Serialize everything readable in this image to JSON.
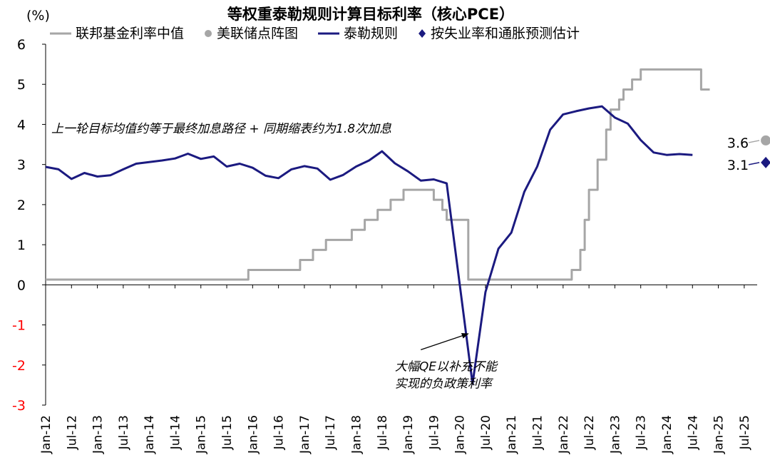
{
  "chart_data": {
    "type": "line",
    "title": "等权重泰勒规则计算目标利率（核心PCE）",
    "unit_label": "(%)",
    "y_range": [
      -3,
      6
    ],
    "y_ticks": [
      "6",
      "5",
      "4",
      "3",
      "2",
      "1",
      "0",
      "-1",
      "-2",
      "-3"
    ],
    "negative_tick_color": "#ff0000",
    "x_range": [
      "2012-01",
      "2025-10"
    ],
    "x_ticks": [
      {
        "date": "2012-01",
        "label": "Jan-12"
      },
      {
        "date": "2012-07",
        "label": "Jul-12"
      },
      {
        "date": "2013-01",
        "label": "Jan-13"
      },
      {
        "date": "2013-07",
        "label": "Jul-13"
      },
      {
        "date": "2014-01",
        "label": "Jan-14"
      },
      {
        "date": "2014-07",
        "label": "Jul-14"
      },
      {
        "date": "2015-01",
        "label": "Jan-15"
      },
      {
        "date": "2015-07",
        "label": "Jul-15"
      },
      {
        "date": "2016-01",
        "label": "Jan-16"
      },
      {
        "date": "2016-07",
        "label": "Jul-16"
      },
      {
        "date": "2017-01",
        "label": "Jan-17"
      },
      {
        "date": "2017-07",
        "label": "Jul-17"
      },
      {
        "date": "2018-01",
        "label": "Jan-18"
      },
      {
        "date": "2018-07",
        "label": "Jul-18"
      },
      {
        "date": "2019-01",
        "label": "Jan-19"
      },
      {
        "date": "2019-07",
        "label": "Jul-19"
      },
      {
        "date": "2020-01",
        "label": "Jan-20"
      },
      {
        "date": "2020-07",
        "label": "Jul-20"
      },
      {
        "date": "2021-01",
        "label": "Jan-21"
      },
      {
        "date": "2021-07",
        "label": "Jul-21"
      },
      {
        "date": "2022-01",
        "label": "Jan-22"
      },
      {
        "date": "2022-07",
        "label": "Jul-22"
      },
      {
        "date": "2023-01",
        "label": "Jan-23"
      },
      {
        "date": "2023-07",
        "label": "Jul-23"
      },
      {
        "date": "2024-01",
        "label": "Jan-24"
      },
      {
        "date": "2024-07",
        "label": "Jul-24"
      },
      {
        "date": "2025-01",
        "label": "Jan-25"
      },
      {
        "date": "2025-07",
        "label": "Jul-25"
      }
    ],
    "legend_placement": "top",
    "series": [
      {
        "name": "联邦基金利率中值",
        "type": "line",
        "color": "#a6a6a6",
        "points": [
          [
            "2012-01",
            0.13
          ],
          [
            "2015-12",
            0.13
          ],
          [
            "2015-12",
            0.37
          ],
          [
            "2016-12",
            0.37
          ],
          [
            "2016-12",
            0.62
          ],
          [
            "2017-03",
            0.62
          ],
          [
            "2017-03",
            0.87
          ],
          [
            "2017-06",
            0.87
          ],
          [
            "2017-06",
            1.12
          ],
          [
            "2017-12",
            1.12
          ],
          [
            "2017-12",
            1.37
          ],
          [
            "2018-03",
            1.37
          ],
          [
            "2018-03",
            1.62
          ],
          [
            "2018-06",
            1.62
          ],
          [
            "2018-06",
            1.87
          ],
          [
            "2018-09",
            1.87
          ],
          [
            "2018-09",
            2.12
          ],
          [
            "2018-12",
            2.12
          ],
          [
            "2018-12",
            2.37
          ],
          [
            "2019-07",
            2.37
          ],
          [
            "2019-07",
            2.12
          ],
          [
            "2019-09",
            2.12
          ],
          [
            "2019-09",
            1.87
          ],
          [
            "2019-10",
            1.87
          ],
          [
            "2019-10",
            1.62
          ],
          [
            "2020-03",
            1.62
          ],
          [
            "2020-03",
            1.12
          ],
          [
            "2020-03",
            0.13
          ],
          [
            "2022-03",
            0.13
          ],
          [
            "2022-03",
            0.37
          ],
          [
            "2022-05",
            0.37
          ],
          [
            "2022-05",
            0.87
          ],
          [
            "2022-06",
            0.87
          ],
          [
            "2022-06",
            1.62
          ],
          [
            "2022-07",
            1.62
          ],
          [
            "2022-07",
            2.37
          ],
          [
            "2022-09",
            2.37
          ],
          [
            "2022-09",
            3.12
          ],
          [
            "2022-11",
            3.12
          ],
          [
            "2022-11",
            3.87
          ],
          [
            "2022-12",
            3.87
          ],
          [
            "2022-12",
            4.37
          ],
          [
            "2023-02",
            4.37
          ],
          [
            "2023-02",
            4.62
          ],
          [
            "2023-03",
            4.62
          ],
          [
            "2023-03",
            4.87
          ],
          [
            "2023-05",
            4.87
          ],
          [
            "2023-05",
            5.12
          ],
          [
            "2023-07",
            5.12
          ],
          [
            "2023-07",
            5.37
          ],
          [
            "2024-09",
            5.37
          ],
          [
            "2024-09",
            4.87
          ],
          [
            "2024-11",
            4.87
          ]
        ]
      },
      {
        "name": "美联储点阵图",
        "type": "scatter",
        "color": "#a6a6a6",
        "points": [
          [
            "2025-12",
            3.6
          ]
        ],
        "point_labels": [
          "3.6"
        ]
      },
      {
        "name": "泰勒规则",
        "type": "line",
        "color": "#1b1a80",
        "points": [
          [
            "2012-01",
            2.94
          ],
          [
            "2012-04",
            2.88
          ],
          [
            "2012-07",
            2.64
          ],
          [
            "2012-10",
            2.79
          ],
          [
            "2013-01",
            2.7
          ],
          [
            "2013-04",
            2.73
          ],
          [
            "2013-07",
            2.88
          ],
          [
            "2013-10",
            3.02
          ],
          [
            "2014-01",
            3.06
          ],
          [
            "2014-04",
            3.1
          ],
          [
            "2014-07",
            3.15
          ],
          [
            "2014-10",
            3.27
          ],
          [
            "2015-01",
            3.14
          ],
          [
            "2015-04",
            3.2
          ],
          [
            "2015-07",
            2.95
          ],
          [
            "2015-10",
            3.02
          ],
          [
            "2016-01",
            2.92
          ],
          [
            "2016-04",
            2.72
          ],
          [
            "2016-07",
            2.66
          ],
          [
            "2016-10",
            2.88
          ],
          [
            "2017-01",
            2.96
          ],
          [
            "2017-04",
            2.9
          ],
          [
            "2017-07",
            2.62
          ],
          [
            "2017-10",
            2.74
          ],
          [
            "2018-01",
            2.95
          ],
          [
            "2018-04",
            3.1
          ],
          [
            "2018-07",
            3.33
          ],
          [
            "2018-10",
            3.03
          ],
          [
            "2019-01",
            2.83
          ],
          [
            "2019-04",
            2.6
          ],
          [
            "2019-07",
            2.63
          ],
          [
            "2019-10",
            2.53
          ],
          [
            "2020-04",
            -2.47
          ],
          [
            "2020-07",
            -0.18
          ],
          [
            "2020-10",
            0.9
          ],
          [
            "2021-01",
            1.3
          ],
          [
            "2021-04",
            2.32
          ],
          [
            "2021-07",
            2.95
          ],
          [
            "2021-10",
            3.87
          ],
          [
            "2022-01",
            4.25
          ],
          [
            "2022-04",
            4.33
          ],
          [
            "2022-07",
            4.4
          ],
          [
            "2022-10",
            4.45
          ],
          [
            "2023-01",
            4.17
          ],
          [
            "2023-04",
            4.02
          ],
          [
            "2023-07",
            3.61
          ],
          [
            "2023-10",
            3.3
          ],
          [
            "2024-01",
            3.24
          ],
          [
            "2024-04",
            3.26
          ],
          [
            "2024-07",
            3.24
          ]
        ]
      },
      {
        "name": "按失业率和通胀预测估计",
        "type": "scatter",
        "marker": "diamond",
        "color": "#1b1a80",
        "points": [
          [
            "2025-12",
            3.05
          ]
        ],
        "point_labels": [
          "3.1"
        ]
      }
    ],
    "annotations": [
      {
        "text": "上一轮目标均值约等于最终加息路径 + 同期缩表约为1.8次加息",
        "x": "2012-01",
        "y": 3.92
      },
      {
        "lines": [
          "大幅QE以补充不能",
          "实现的负政策利率"
        ],
        "x": "2018-10",
        "y": -2.14,
        "arrow_from": [
          "2019-04",
          -1.62
        ],
        "arrow_to": [
          "2020-03",
          -1.22
        ]
      }
    ]
  }
}
